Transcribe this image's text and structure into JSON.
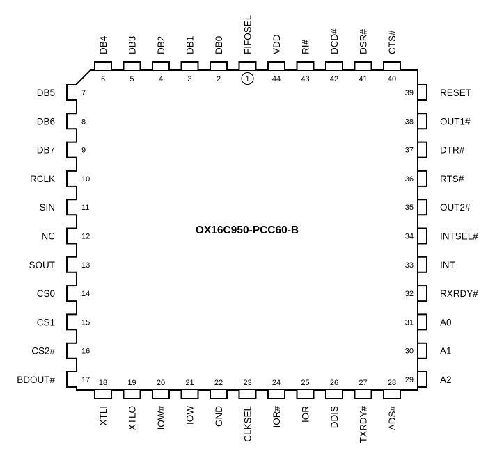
{
  "chip": {
    "part_number": "OX16C950-PCC60-B",
    "pin1_marker": "circle"
  },
  "pins": {
    "top": [
      {
        "num": "6",
        "name": "DB4"
      },
      {
        "num": "5",
        "name": "DB3"
      },
      {
        "num": "4",
        "name": "DB2"
      },
      {
        "num": "3",
        "name": "DB1"
      },
      {
        "num": "2",
        "name": "DB0"
      },
      {
        "num": "1",
        "name": "FIFOSEL"
      },
      {
        "num": "44",
        "name": "VDD"
      },
      {
        "num": "43",
        "name": "RI#"
      },
      {
        "num": "42",
        "name": "DCD#"
      },
      {
        "num": "41",
        "name": "DSR#"
      },
      {
        "num": "40",
        "name": "CTS#"
      }
    ],
    "left": [
      {
        "num": "7",
        "name": "DB5"
      },
      {
        "num": "8",
        "name": "DB6"
      },
      {
        "num": "9",
        "name": "DB7"
      },
      {
        "num": "10",
        "name": "RCLK"
      },
      {
        "num": "11",
        "name": "SIN"
      },
      {
        "num": "12",
        "name": "NC"
      },
      {
        "num": "13",
        "name": "SOUT"
      },
      {
        "num": "14",
        "name": "CS0"
      },
      {
        "num": "15",
        "name": "CS1"
      },
      {
        "num": "16",
        "name": "CS2#"
      },
      {
        "num": "17",
        "name": "BDOUT#"
      }
    ],
    "right": [
      {
        "num": "39",
        "name": "RESET"
      },
      {
        "num": "38",
        "name": "OUT1#"
      },
      {
        "num": "37",
        "name": "DTR#"
      },
      {
        "num": "36",
        "name": "RTS#"
      },
      {
        "num": "35",
        "name": "OUT2#"
      },
      {
        "num": "34",
        "name": "INTSEL#"
      },
      {
        "num": "33",
        "name": "INT"
      },
      {
        "num": "32",
        "name": "RXRDY#"
      },
      {
        "num": "31",
        "name": "A0"
      },
      {
        "num": "30",
        "name": "A1"
      },
      {
        "num": "29",
        "name": "A2"
      }
    ],
    "bottom": [
      {
        "num": "18",
        "name": "XTLI"
      },
      {
        "num": "19",
        "name": "XTLO"
      },
      {
        "num": "20",
        "name": "IOW#"
      },
      {
        "num": "21",
        "name": "IOW"
      },
      {
        "num": "22",
        "name": "GND"
      },
      {
        "num": "23",
        "name": "CLKSEL"
      },
      {
        "num": "24",
        "name": "IOR#"
      },
      {
        "num": "25",
        "name": "IOR"
      },
      {
        "num": "26",
        "name": "DDIS"
      },
      {
        "num": "27",
        "name": "TXRDY#"
      },
      {
        "num": "28",
        "name": "ADS#"
      }
    ]
  }
}
